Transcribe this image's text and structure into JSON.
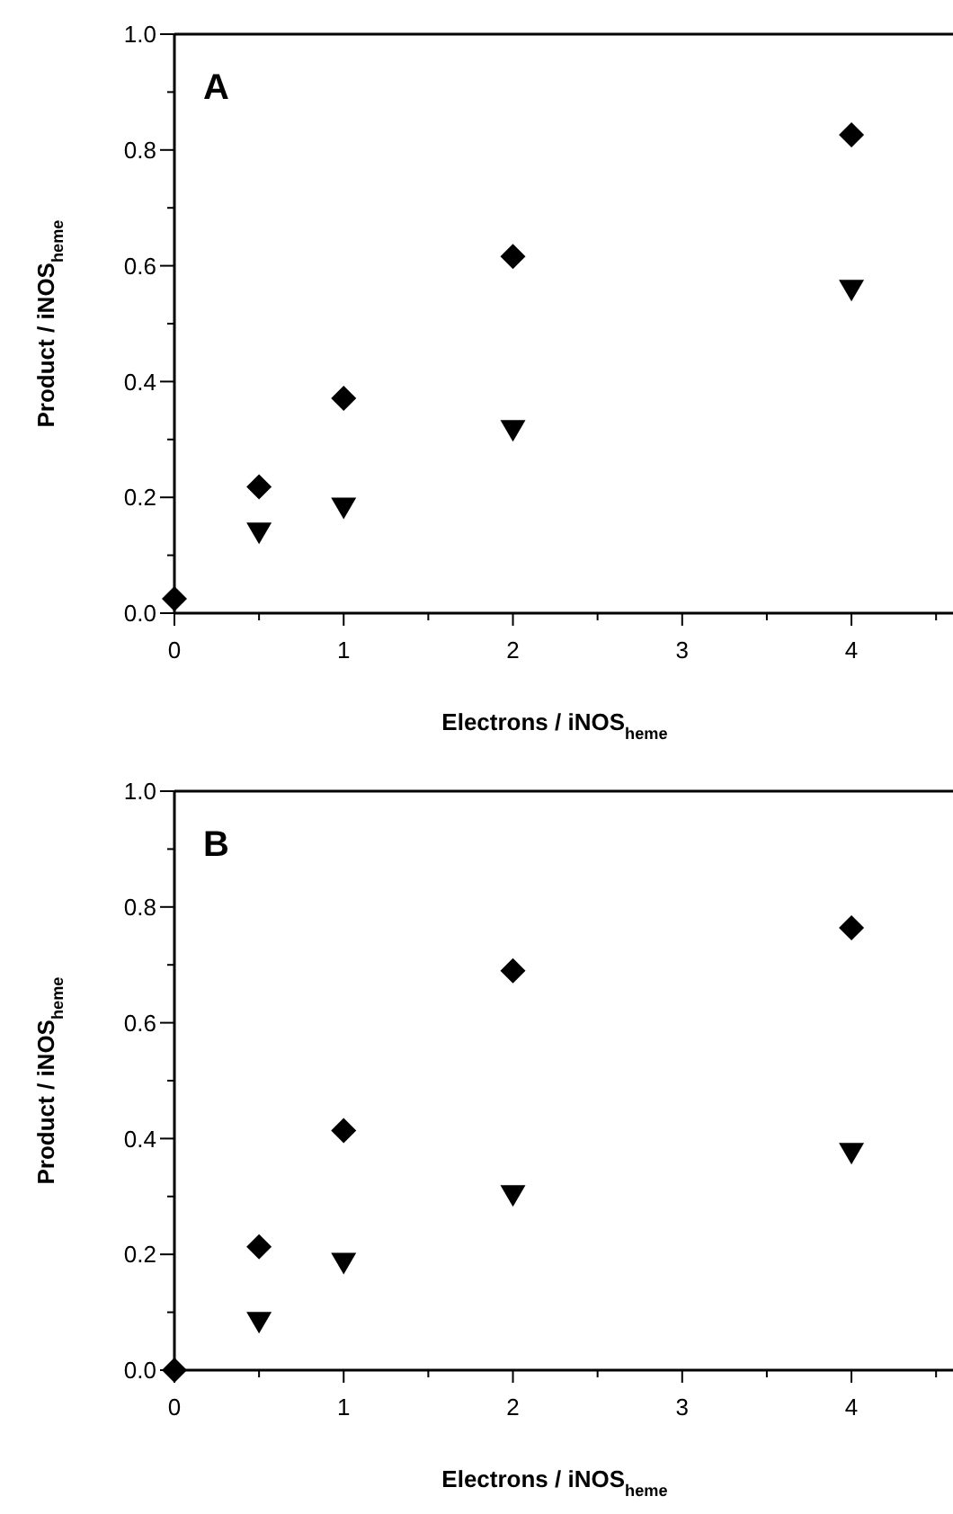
{
  "chart_data": [
    {
      "type": "scatter",
      "xlabel": "Electrons / iNOS$_{heme}$",
      "ylabel": "Product / iNOS$_{heme}$",
      "annotations": [
        "A"
      ],
      "xlim": [
        0,
        4.6
      ],
      "xticks": [
        0,
        {
          "value": 0.5,
          "label": null
        },
        1,
        {
          "value": 1.5,
          "label": null
        },
        2,
        {
          "value": 2.5,
          "label": null
        },
        3,
        {
          "value": 3.5,
          "label": null
        },
        4,
        {
          "value": 4.5,
          "label": null
        }
      ],
      "ylim": [
        0,
        1
      ],
      "yticks": [
        {
          "value": 0,
          "label": "0.0"
        },
        {
          "value": 0.1,
          "label": null
        },
        {
          "value": 0.2,
          "label": "0.2"
        },
        {
          "value": 0.3,
          "label": null
        },
        {
          "value": 0.4,
          "label": "0.4"
        },
        {
          "value": 0.5,
          "label": null
        },
        {
          "value": 0.6,
          "label": "0.6"
        },
        {
          "value": 0.7,
          "label": null
        },
        {
          "value": 0.8,
          "label": "0.8"
        },
        {
          "value": 0.9,
          "label": null
        },
        {
          "value": 1,
          "label": "1.0"
        }
      ],
      "series": [
        {
          "color": "#000000",
          "marker": "diamond",
          "x": [
            0,
            0.5,
            1,
            2,
            4
          ],
          "values": [
            0.025,
            0.218,
            0.371,
            0.616,
            0.826
          ]
        },
        {
          "color": "#000000",
          "marker": "triangle",
          "x": [
            0.5,
            1,
            2,
            4
          ],
          "values": [
            0.141,
            0.184,
            0.318,
            0.56
          ]
        }
      ]
    },
    {
      "type": "scatter",
      "xlabel": "Electrons / iNOS$_{heme}$",
      "ylabel": "Product / iNOS$_{heme}$",
      "annotations": [
        "B"
      ],
      "xlim": [
        0,
        4.6
      ],
      "xticks": [
        0,
        {
          "value": 0.5,
          "label": null
        },
        1,
        {
          "value": 1.5,
          "label": null
        },
        2,
        {
          "value": 2.5,
          "label": null
        },
        3,
        {
          "value": 3.5,
          "label": null
        },
        4,
        {
          "value": 4.5,
          "label": null
        }
      ],
      "ylim": [
        0,
        1
      ],
      "yticks": [
        {
          "value": 0,
          "label": "0.0"
        },
        {
          "value": 0.1,
          "label": null
        },
        {
          "value": 0.2,
          "label": "0.2"
        },
        {
          "value": 0.3,
          "label": null
        },
        {
          "value": 0.4,
          "label": "0.4"
        },
        {
          "value": 0.5,
          "label": null
        },
        {
          "value": 0.6,
          "label": "0.6"
        },
        {
          "value": 0.7,
          "label": null
        },
        {
          "value": 0.8,
          "label": "0.8"
        },
        {
          "value": 0.9,
          "label": null
        },
        {
          "value": 1,
          "label": "1.0"
        }
      ],
      "series": [
        {
          "color": "#000000",
          "marker": "diamond",
          "x": [
            0,
            0.5,
            1,
            2,
            4
          ],
          "values": [
            0,
            0.213,
            0.414,
            0.69,
            0.764
          ]
        },
        {
          "color": "#000000",
          "marker": "triangle",
          "x": [
            0.5,
            1,
            2,
            4
          ],
          "values": [
            0.085,
            0.187,
            0.304,
            0.377
          ]
        }
      ]
    }
  ]
}
